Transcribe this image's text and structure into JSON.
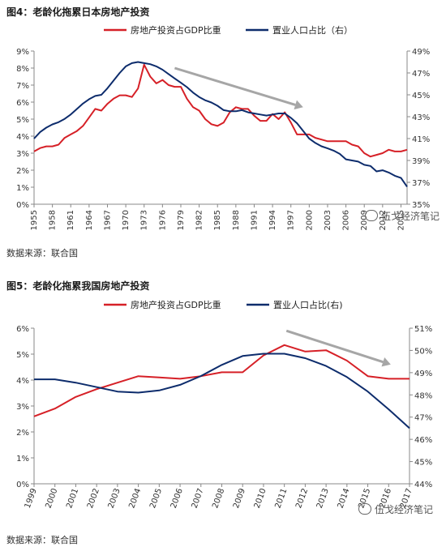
{
  "figures": {
    "fig4": {
      "title": "图4：老龄化拖累日本房地产投资",
      "source": "数据来源：联合国",
      "watermark": "伍戈经济笔记"
    },
    "fig5": {
      "title": "图5：老龄化拖累我国房地产投资",
      "source": "数据来源：联合国",
      "watermark": "伍戈经济笔记"
    }
  },
  "colors": {
    "series_investment": "#d62027",
    "series_population": "#0d2c6c",
    "trend_arrow": "#a6a6a6",
    "axis": "#888888"
  },
  "chart_data": [
    {
      "id": "fig4",
      "type": "line",
      "title": "图4：老龄化拖累日本房地产投资",
      "legend_position": "top",
      "x_tick_labels": [
        "1955",
        "1958",
        "1961",
        "1964",
        "1967",
        "1970",
        "1973",
        "1976",
        "1979",
        "1982",
        "1985",
        "1988",
        "1991",
        "1994",
        "1997",
        "2000",
        "2003",
        "2006",
        "2009",
        "2012",
        "2015"
      ],
      "x_range": [
        1955,
        2016
      ],
      "y_left": {
        "range": [
          0,
          9
        ],
        "tick_labels": [
          "0%",
          "1%",
          "2%",
          "3%",
          "4%",
          "5%",
          "6%",
          "7%",
          "8%",
          "9%"
        ]
      },
      "y_right": {
        "range": [
          35,
          49
        ],
        "tick_labels": [
          "35%",
          "37%",
          "39%",
          "41%",
          "43%",
          "45%",
          "47%",
          "49%"
        ]
      },
      "grid": false,
      "trend_arrow": {
        "from": [
          1978,
          8.0
        ],
        "to": [
          1999,
          5.7
        ]
      },
      "series": [
        {
          "name": "房地产投资占GDP比重",
          "axis": "left",
          "x": [
            1955,
            1956,
            1957,
            1958,
            1959,
            1960,
            1961,
            1962,
            1963,
            1964,
            1965,
            1966,
            1967,
            1968,
            1969,
            1970,
            1971,
            1972,
            1973,
            1974,
            1975,
            1976,
            1977,
            1978,
            1979,
            1980,
            1981,
            1982,
            1983,
            1984,
            1985,
            1986,
            1987,
            1988,
            1989,
            1990,
            1991,
            1992,
            1993,
            1994,
            1995,
            1996,
            1997,
            1998,
            1999,
            2000,
            2001,
            2002,
            2003,
            2004,
            2005,
            2006,
            2007,
            2008,
            2009,
            2010,
            2011,
            2012,
            2013,
            2014,
            2015,
            2016
          ],
          "y": [
            3.1,
            3.3,
            3.4,
            3.4,
            3.5,
            3.9,
            4.1,
            4.3,
            4.6,
            5.1,
            5.6,
            5.5,
            5.9,
            6.2,
            6.4,
            6.4,
            6.3,
            6.8,
            8.2,
            7.5,
            7.1,
            7.3,
            7.0,
            6.9,
            6.9,
            6.2,
            5.7,
            5.5,
            5.0,
            4.7,
            4.6,
            4.8,
            5.4,
            5.7,
            5.6,
            5.6,
            5.2,
            4.9,
            4.9,
            5.3,
            5.0,
            5.4,
            4.8,
            4.1,
            4.1,
            4.1,
            3.9,
            3.8,
            3.7,
            3.7,
            3.7,
            3.7,
            3.5,
            3.4,
            3.0,
            2.8,
            2.9,
            3.0,
            3.2,
            3.1,
            3.1,
            3.2
          ]
        },
        {
          "name": "置业人口占比（右）",
          "axis": "right",
          "x": [
            1955,
            1956,
            1957,
            1958,
            1959,
            1960,
            1961,
            1962,
            1963,
            1964,
            1965,
            1966,
            1967,
            1968,
            1969,
            1970,
            1971,
            1972,
            1973,
            1974,
            1975,
            1976,
            1977,
            1978,
            1979,
            1980,
            1981,
            1982,
            1983,
            1984,
            1985,
            1986,
            1987,
            1988,
            1989,
            1990,
            1991,
            1992,
            1993,
            1994,
            1995,
            1996,
            1997,
            1998,
            1999,
            2000,
            2001,
            2002,
            2003,
            2004,
            2005,
            2006,
            2007,
            2008,
            2009,
            2010,
            2011,
            2012,
            2013,
            2014,
            2015,
            2016
          ],
          "y": [
            41.0,
            41.6,
            42.0,
            42.3,
            42.5,
            42.8,
            43.2,
            43.7,
            44.2,
            44.6,
            44.9,
            45.0,
            45.6,
            46.3,
            47.0,
            47.6,
            47.9,
            48.0,
            47.9,
            47.8,
            47.6,
            47.3,
            46.9,
            46.5,
            46.1,
            45.7,
            45.2,
            44.8,
            44.5,
            44.3,
            44.0,
            43.6,
            43.5,
            43.5,
            43.6,
            43.4,
            43.3,
            43.2,
            43.1,
            43.2,
            43.3,
            43.3,
            42.9,
            42.4,
            41.7,
            41.0,
            40.6,
            40.3,
            40.1,
            39.9,
            39.6,
            39.1,
            39.0,
            38.9,
            38.6,
            38.5,
            38.0,
            38.1,
            37.9,
            37.6,
            37.4,
            36.6
          ]
        }
      ]
    },
    {
      "id": "fig5",
      "type": "line",
      "title": "图5：老龄化拖累我国房地产投资",
      "legend_position": "top",
      "x_tick_labels": [
        "1999",
        "2000",
        "2001",
        "2002",
        "2003",
        "2004",
        "2005",
        "2006",
        "2007",
        "2008",
        "2009",
        "2010",
        "2011",
        "2012",
        "2013",
        "2014",
        "2015",
        "2016",
        "2017"
      ],
      "x_range": [
        1999,
        2017
      ],
      "y_left": {
        "range": [
          0,
          6
        ],
        "tick_labels": [
          "0%",
          "1%",
          "2%",
          "3%",
          "4%",
          "5%",
          "6%"
        ]
      },
      "y_right": {
        "range": [
          44,
          51
        ],
        "tick_labels": [
          "44%",
          "45%",
          "46%",
          "47%",
          "48%",
          "49%",
          "50%",
          "51%"
        ]
      },
      "grid": false,
      "trend_arrow": {
        "from": [
          2011.1,
          5.9
        ],
        "to": [
          2016.1,
          4.6
        ]
      },
      "series": [
        {
          "name": "房地产投资占GDP比重",
          "axis": "left",
          "x": [
            1999,
            2000,
            2001,
            2002,
            2003,
            2004,
            2005,
            2006,
            2007,
            2008,
            2009,
            2010,
            2011,
            2012,
            2013,
            2014,
            2015,
            2016,
            2017
          ],
          "y": [
            2.6,
            2.9,
            3.35,
            3.65,
            3.9,
            4.15,
            4.1,
            4.05,
            4.15,
            4.3,
            4.3,
            4.95,
            5.35,
            5.1,
            5.15,
            4.75,
            4.15,
            4.05,
            4.05
          ]
        },
        {
          "name": "置业人口占比(右)",
          "axis": "right",
          "x": [
            1999,
            2000,
            2001,
            2002,
            2003,
            2004,
            2005,
            2006,
            2007,
            2008,
            2009,
            2010,
            2011,
            2012,
            2013,
            2014,
            2015,
            2016,
            2017
          ],
          "y": [
            48.7,
            48.7,
            48.55,
            48.35,
            48.15,
            48.1,
            48.2,
            48.45,
            48.85,
            49.35,
            49.75,
            49.85,
            49.85,
            49.65,
            49.3,
            48.8,
            48.15,
            47.35,
            46.5
          ]
        }
      ]
    }
  ]
}
